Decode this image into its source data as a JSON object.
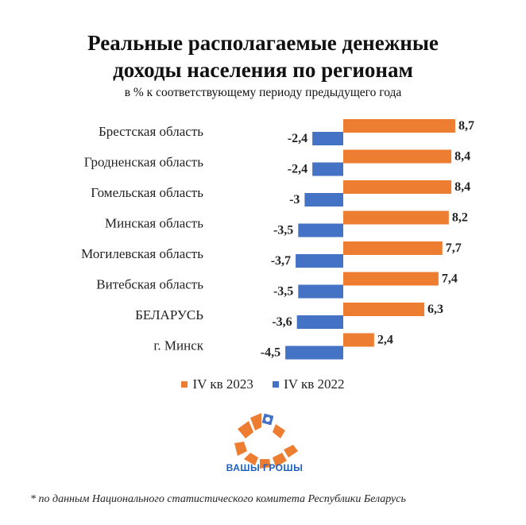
{
  "title_line1": "Реальные располагаемые денежные",
  "title_line2": "доходы населения по регионам",
  "subtitle": "в %  к соответствующему периоду предыдущего года",
  "chart_data": {
    "type": "bar",
    "orientation": "horizontal",
    "categories": [
      "Брестская область",
      "Гродненская область",
      "Гомельская область",
      "Минская область",
      "Могилевская область",
      "Витебская область",
      "БЕЛАРУСЬ",
      "г. Минск"
    ],
    "series": [
      {
        "name": "IV кв 2023",
        "color": "#ed7d31",
        "values": [
          8.7,
          8.4,
          8.4,
          8.2,
          7.7,
          7.4,
          6.3,
          2.4
        ],
        "labels": [
          "8,7",
          "8,4",
          "8,4",
          "8,2",
          "7,7",
          "7,4",
          "6,3",
          "2,4"
        ]
      },
      {
        "name": "IV кв 2022",
        "color": "#4472c4",
        "values": [
          -2.4,
          -2.4,
          -3,
          -3.5,
          -3.7,
          -3.5,
          -3.6,
          -4.5
        ],
        "labels": [
          "-2,4",
          "-2,4",
          "-3",
          "-3,5",
          "-3,7",
          "-3,5",
          "-3,6",
          "-4,5"
        ]
      }
    ],
    "xlim": [
      -4.5,
      8.7
    ]
  },
  "logo": {
    "text": "ВАШЫ ГРОШЫ",
    "color": "#ed7d31",
    "text_color": "#1f5fbf"
  },
  "footnote": "* по данным Национального статистического комитета Республики Беларусь"
}
